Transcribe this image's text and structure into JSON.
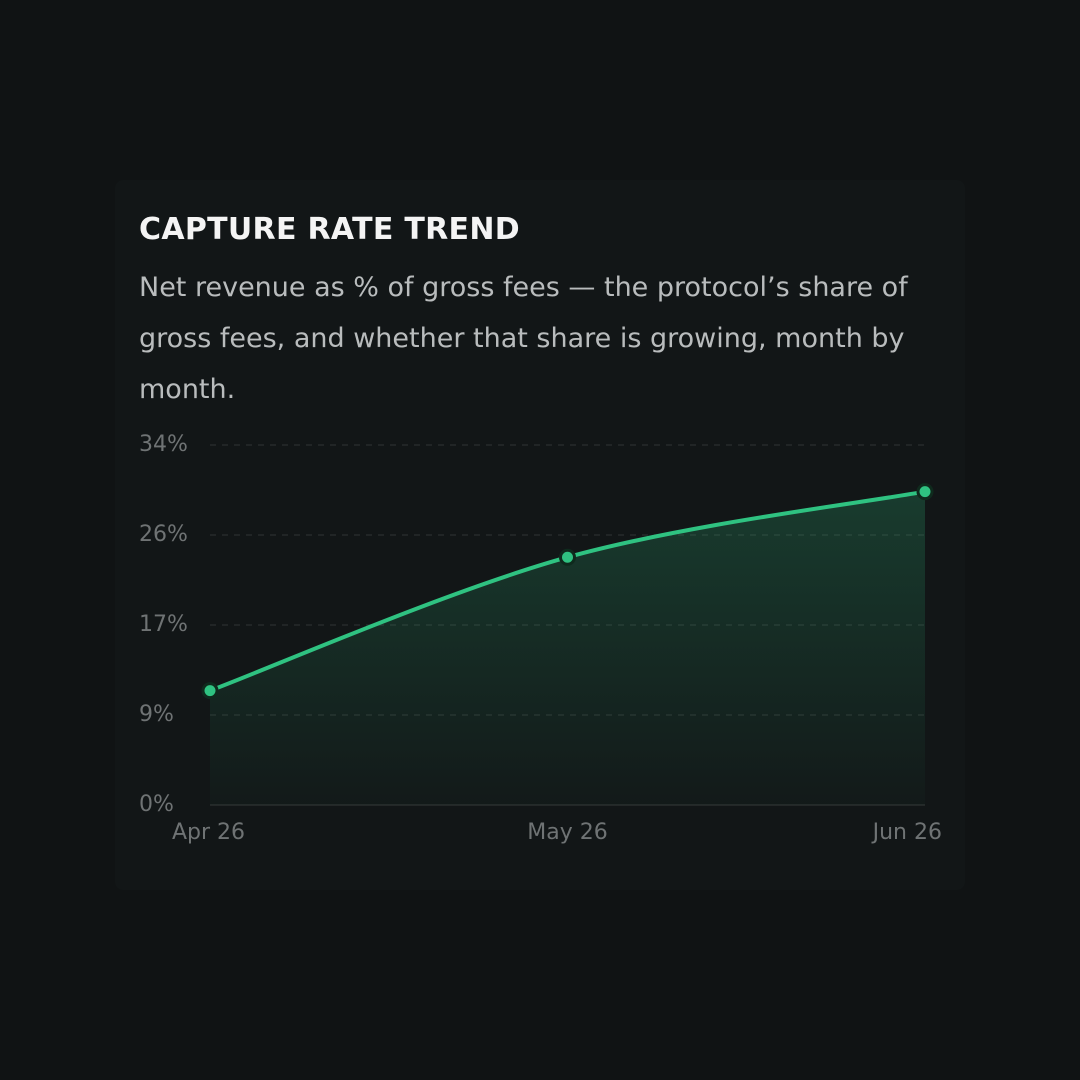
{
  "chart_data": {
    "type": "line",
    "title": "CAPTURE RATE TREND",
    "subtitle": "Net revenue as % of gross fees — the protocol’s share of gross fees, and whether that share is growing, month by month.",
    "categories": [
      "Apr 26",
      "May 26",
      "Jun 26"
    ],
    "series": [
      {
        "name": "Capture rate",
        "color": "#2fc281",
        "values": [
          10.8,
          23.4,
          29.6
        ]
      }
    ],
    "ylim": [
      0,
      34
    ],
    "yticks": [
      {
        "value": 0,
        "label": "0%"
      },
      {
        "value": 8.5,
        "label": "9%"
      },
      {
        "value": 17,
        "label": "17%"
      },
      {
        "value": 25.5,
        "label": "26%"
      },
      {
        "value": 34,
        "label": "34%"
      }
    ],
    "grid": true
  }
}
